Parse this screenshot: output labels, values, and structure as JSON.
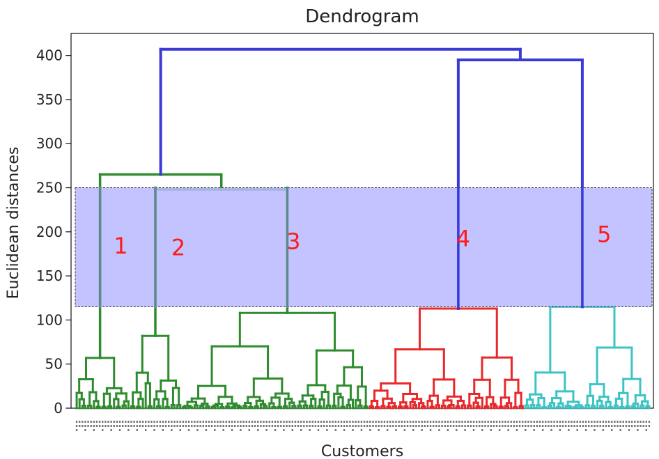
{
  "chart_data": {
    "type": "dendrogram",
    "title": "Dendrogram",
    "xlabel": "Customers",
    "ylabel": "Euclidean distances",
    "ylim": [
      0,
      425
    ],
    "yticks": [
      0,
      50,
      100,
      150,
      200,
      250,
      300,
      350,
      400
    ],
    "leaf_count": 200,
    "colors": {
      "above_threshold": "#3a3ad6",
      "cluster_green": "#2e8b2e",
      "cluster_red": "#e8282a",
      "cluster_cyan": "#3cc4c4",
      "band_fill": "#b9baff",
      "annotation": "#ff1a1a"
    },
    "cut_band": {
      "y_low": 115,
      "y_high": 250
    },
    "clusters": [
      {
        "label": "1",
        "color": "green",
        "leaf_span": [
          0,
          19
        ],
        "merge_height": 57
      },
      {
        "label": "2",
        "color": "green",
        "leaf_span": [
          19,
          37
        ],
        "merge_height": 82
      },
      {
        "label": "3",
        "color": "green",
        "leaf_span": [
          37,
          102
        ],
        "merge_height": 108
      },
      {
        "label": "4",
        "color": "red",
        "leaf_span": [
          102,
          156
        ],
        "merge_height": 113
      },
      {
        "label": "5",
        "color": "cyan",
        "leaf_span": [
          156,
          200
        ],
        "merge_height": 115
      }
    ],
    "upper_merges": [
      {
        "joins": [
          "cluster 1",
          "2+3"
        ],
        "height": 265
      },
      {
        "joins": [
          "cluster 2",
          "cluster 3"
        ],
        "height": 248
      },
      {
        "joins": [
          "cluster 4",
          "cluster 5"
        ],
        "height": 395
      },
      {
        "joins": [
          "1+2+3",
          "4+5"
        ],
        "height": 407
      }
    ],
    "annotations": [
      {
        "text": "1",
        "x_leaf": 10,
        "y": 185
      },
      {
        "text": "2",
        "x_leaf": 30,
        "y": 183
      },
      {
        "text": "3",
        "x_leaf": 70,
        "y": 190
      },
      {
        "text": "4",
        "x_leaf": 129,
        "y": 193
      },
      {
        "text": "5",
        "x_leaf": 178,
        "y": 198
      }
    ]
  }
}
